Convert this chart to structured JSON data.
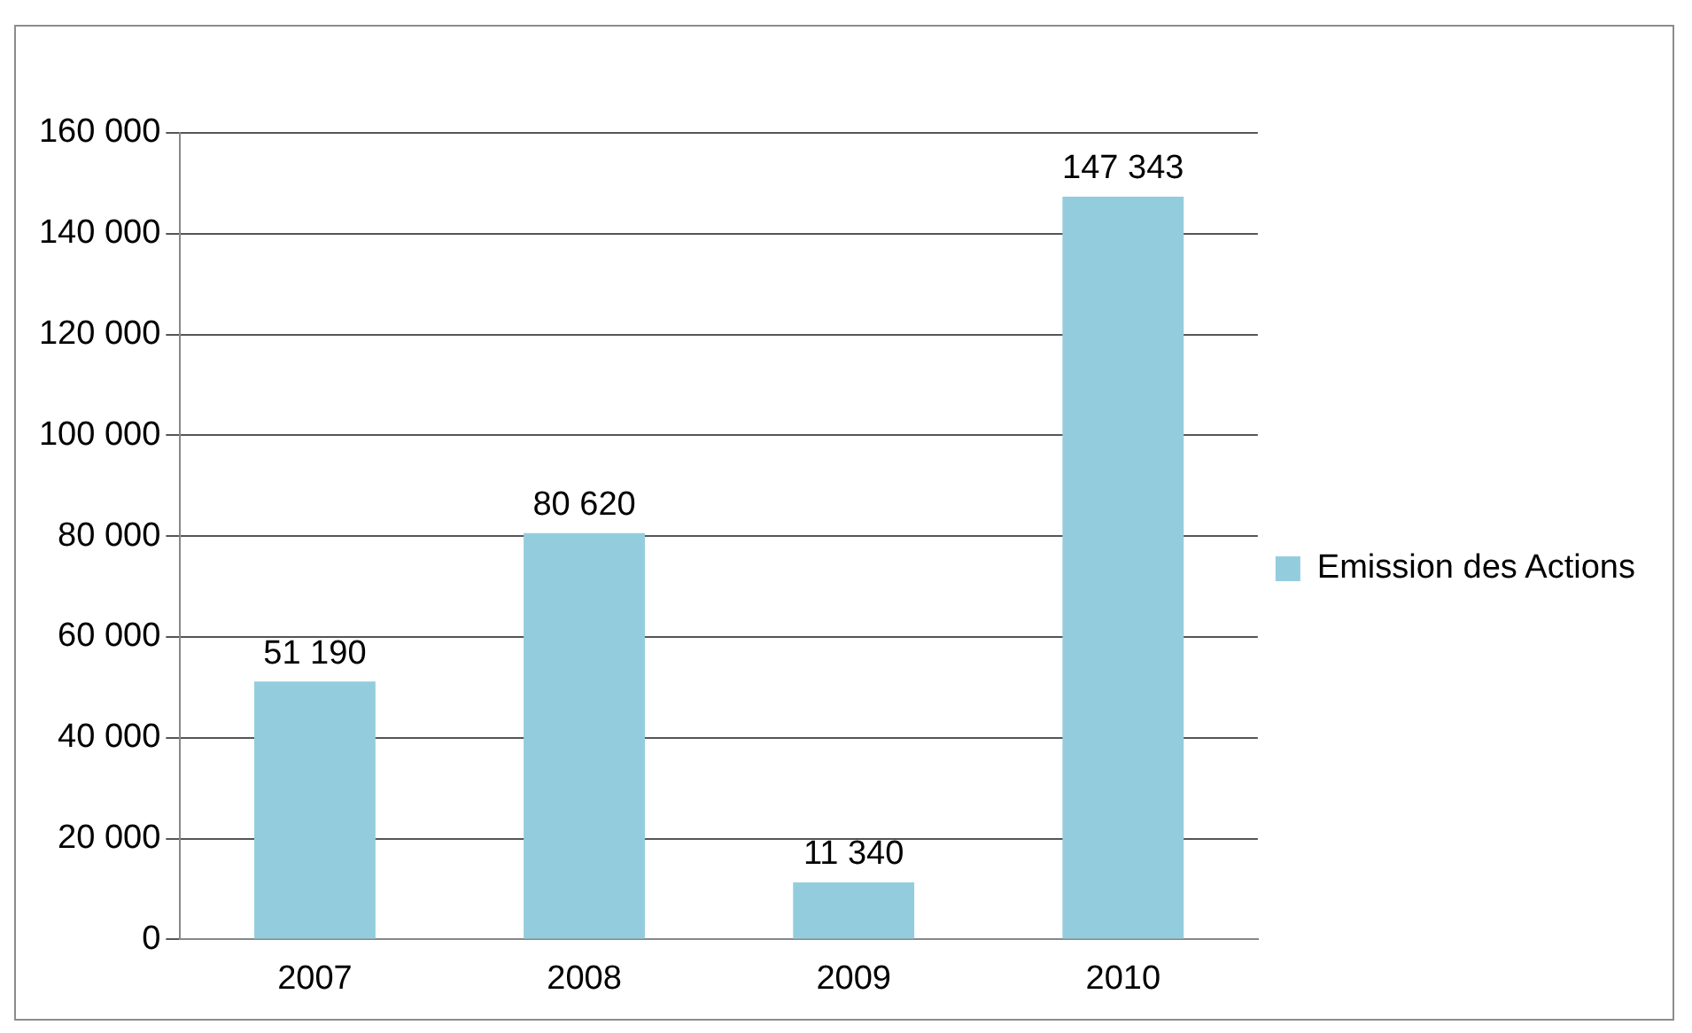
{
  "chart_data": {
    "type": "bar",
    "categories": [
      "2007",
      "2008",
      "2009",
      "2010"
    ],
    "series": [
      {
        "name": "Emission des Actions",
        "color": "#93cddd",
        "values": [
          51190,
          80620,
          11340,
          147343
        ],
        "value_labels": [
          "51 190",
          "80 620",
          "11 340",
          "147 343"
        ]
      }
    ],
    "ylim": [
      0,
      160000
    ],
    "yticks": [
      {
        "value": 0,
        "label": "0"
      },
      {
        "value": 20000,
        "label": "20 000"
      },
      {
        "value": 40000,
        "label": "40 000"
      },
      {
        "value": 60000,
        "label": "60 000"
      },
      {
        "value": 80000,
        "label": "80 000"
      },
      {
        "value": 100000,
        "label": "100 000"
      },
      {
        "value": 120000,
        "label": "120 000"
      },
      {
        "value": 140000,
        "label": "140 000"
      },
      {
        "value": 160000,
        "label": "160 000"
      }
    ],
    "grid": "y",
    "legend": "right"
  }
}
